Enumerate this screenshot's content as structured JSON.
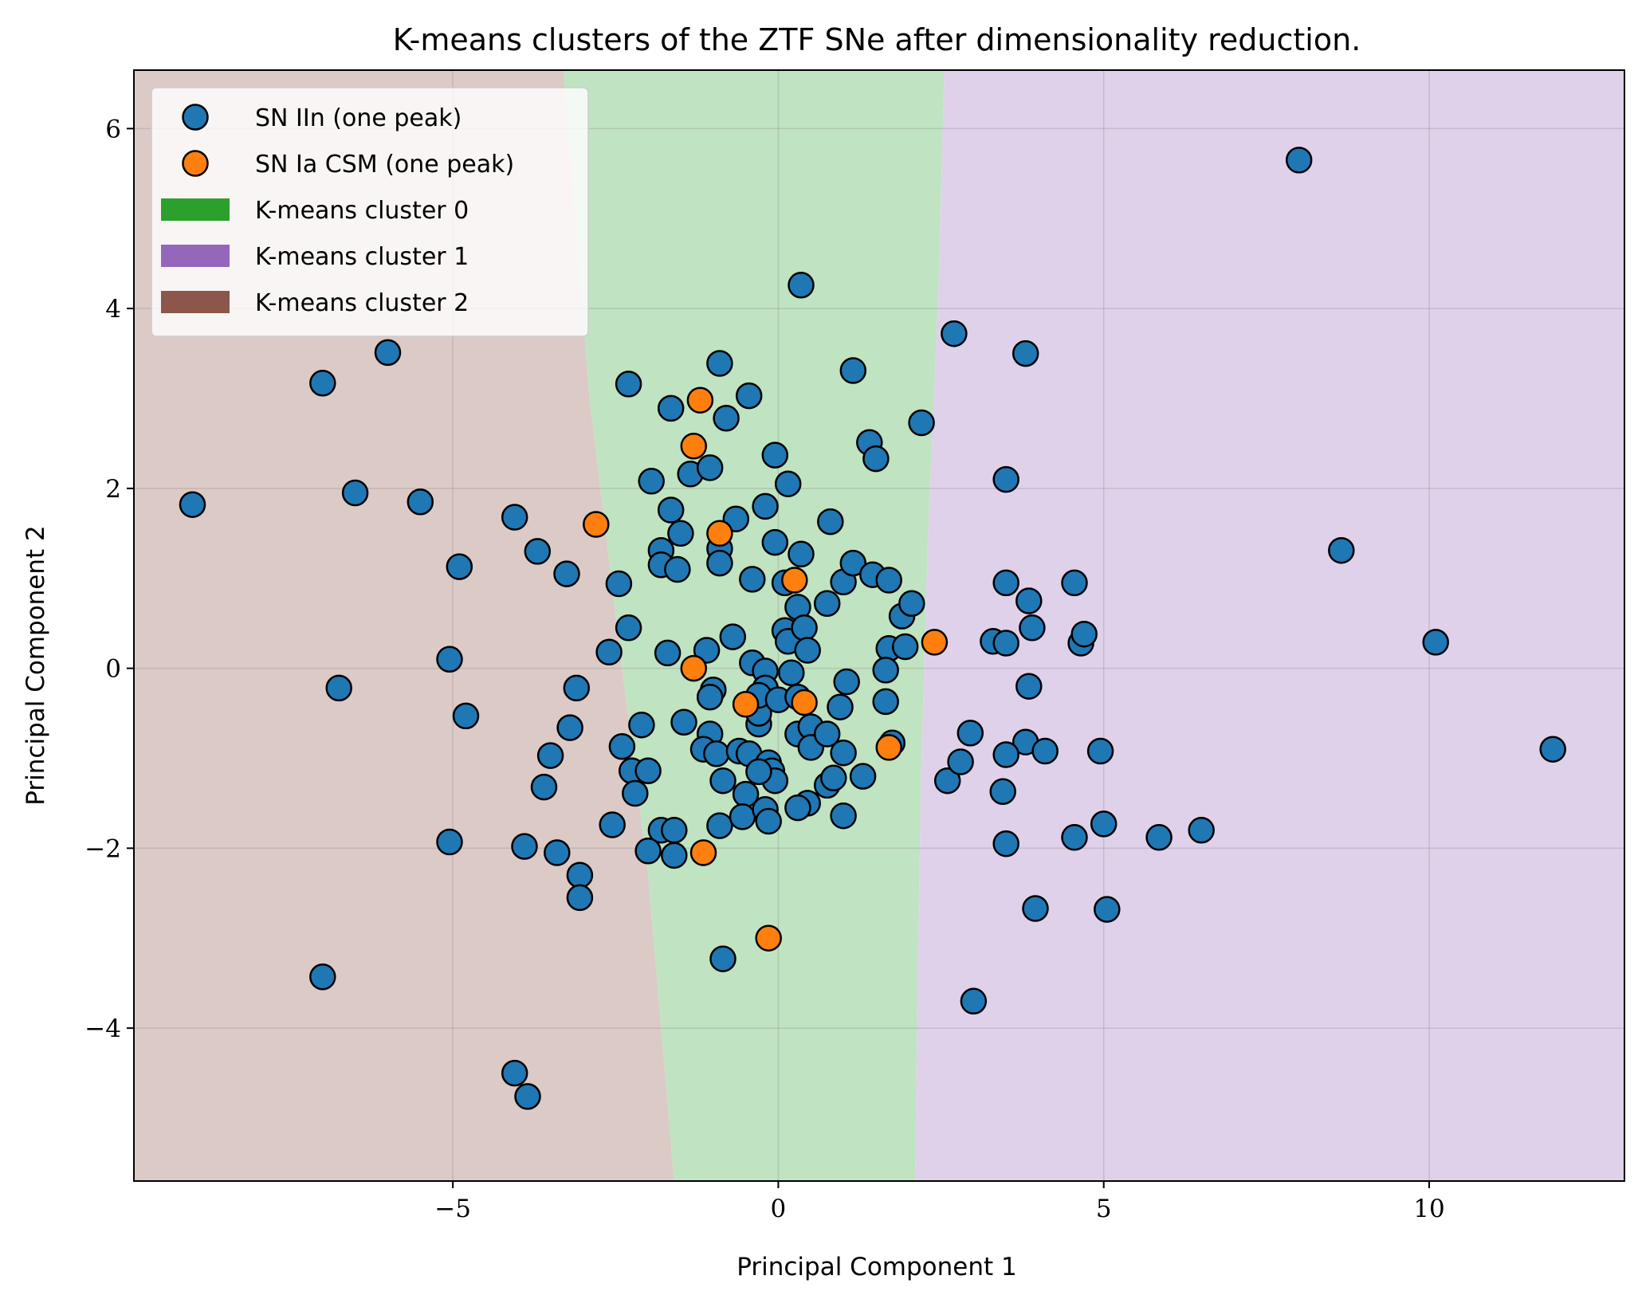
{
  "chart_data": {
    "type": "scatter",
    "title": "K-means clusters of the ZTF SNe after dimensionality reduction.",
    "xlabel": "Principal Component 1",
    "ylabel": "Principal Component 2",
    "xlim": [
      -9.9,
      13.0
    ],
    "ylim": [
      -5.7,
      6.65
    ],
    "xticks": [
      -5,
      0,
      5,
      10
    ],
    "xtick_labels": [
      "−5",
      "0",
      "5",
      "10"
    ],
    "yticks": [
      -4,
      -2,
      0,
      2,
      4,
      6
    ],
    "ytick_labels": [
      "−4",
      "−2",
      "0",
      "2",
      "4",
      "6"
    ],
    "grid": true,
    "legend_position": "top-left",
    "colors": {
      "sn_iin": "#1f77b4",
      "sn_ia_csm": "#ff7f0e",
      "cluster_0": "#2ca02c",
      "cluster_1": "#9467bd",
      "cluster_2": "#8c564b",
      "region_0": "#c0e3c2",
      "region_1": "#dfd1ea",
      "region_2": "#dccac7"
    },
    "regions": [
      {
        "name": "K-means cluster 2",
        "color_key": "cluster_2"
      },
      {
        "name": "K-means cluster 0",
        "color_key": "cluster_0"
      },
      {
        "name": "K-means cluster 1",
        "color_key": "cluster_1"
      }
    ],
    "boundary_0_2": [
      [
        -3.3,
        6.65
      ],
      [
        -2.9,
        3.0
      ],
      [
        -2.4,
        0.0
      ],
      [
        -2.0,
        -2.3
      ],
      [
        -1.6,
        -5.7
      ]
    ],
    "boundary_0_1": [
      [
        2.55,
        6.65
      ],
      [
        2.45,
        4.0
      ],
      [
        2.3,
        1.5
      ],
      [
        2.2,
        -1.0
      ],
      [
        2.15,
        -3.0
      ],
      [
        2.1,
        -5.7
      ]
    ],
    "series": [
      {
        "name": "SN IIn (one peak)",
        "color_key": "sn_iin",
        "points": [
          [
            -9.0,
            1.82
          ],
          [
            -7.0,
            3.17
          ],
          [
            -6.0,
            3.51
          ],
          [
            -6.5,
            1.95
          ],
          [
            -5.5,
            1.85
          ],
          [
            -4.9,
            1.13
          ],
          [
            -5.05,
            0.1
          ],
          [
            -6.75,
            -0.22
          ],
          [
            -4.8,
            -0.53
          ],
          [
            -5.05,
            -1.93
          ],
          [
            -7.0,
            -3.43
          ],
          [
            -4.05,
            -4.5
          ],
          [
            -3.85,
            -4.76
          ],
          [
            -4.05,
            1.68
          ],
          [
            -3.7,
            1.3
          ],
          [
            -3.25,
            1.05
          ],
          [
            -3.1,
            -0.22
          ],
          [
            -3.2,
            -0.66
          ],
          [
            -3.5,
            -0.97
          ],
          [
            -3.6,
            -1.32
          ],
          [
            -3.9,
            -1.98
          ],
          [
            -3.4,
            -2.05
          ],
          [
            -3.05,
            -2.3
          ],
          [
            -3.05,
            -2.55
          ],
          [
            -2.3,
            3.16
          ],
          [
            -2.45,
            0.94
          ],
          [
            -2.3,
            0.45
          ],
          [
            -2.6,
            0.18
          ],
          [
            -2.1,
            -0.63
          ],
          [
            -2.4,
            -0.87
          ],
          [
            -2.25,
            -1.14
          ],
          [
            -2.2,
            -1.39
          ],
          [
            -2.55,
            -1.74
          ],
          [
            -1.95,
            2.08
          ],
          [
            -1.65,
            2.89
          ],
          [
            -1.35,
            2.16
          ],
          [
            -1.05,
            2.23
          ],
          [
            -0.9,
            3.39
          ],
          [
            -0.8,
            2.78
          ],
          [
            -0.45,
            3.03
          ],
          [
            -1.65,
            1.76
          ],
          [
            -1.5,
            1.5
          ],
          [
            -1.8,
            1.31
          ],
          [
            -1.8,
            1.15
          ],
          [
            -1.55,
            1.1
          ],
          [
            -0.9,
            1.33
          ],
          [
            -0.9,
            1.17
          ],
          [
            -0.65,
            1.66
          ],
          [
            -0.4,
            0.99
          ],
          [
            -1.7,
            0.17
          ],
          [
            -1.1,
            0.2
          ],
          [
            -0.7,
            0.35
          ],
          [
            -0.4,
            0.06
          ],
          [
            -1.0,
            -0.24
          ],
          [
            -1.05,
            -0.32
          ],
          [
            -1.45,
            -0.6
          ],
          [
            -1.05,
            -0.73
          ],
          [
            -1.15,
            -0.9
          ],
          [
            -0.95,
            -0.95
          ],
          [
            -0.85,
            -1.25
          ],
          [
            -0.9,
            -1.75
          ],
          [
            -0.6,
            -0.92
          ],
          [
            -0.45,
            -0.95
          ],
          [
            -0.3,
            -0.62
          ],
          [
            -0.3,
            -0.5
          ],
          [
            -0.5,
            -1.4
          ],
          [
            -0.55,
            -1.65
          ],
          [
            -2.0,
            -1.14
          ],
          [
            -1.8,
            -1.8
          ],
          [
            -1.6,
            -1.8
          ],
          [
            -2.0,
            -2.03
          ],
          [
            -1.6,
            -2.08
          ],
          [
            -0.85,
            -3.23
          ],
          [
            -0.2,
            -0.03
          ],
          [
            -0.2,
            -0.22
          ],
          [
            -0.3,
            -0.3
          ],
          [
            0.0,
            -0.35
          ],
          [
            -0.15,
            -1.05
          ],
          [
            -0.1,
            -1.14
          ],
          [
            -0.05,
            -1.25
          ],
          [
            -0.3,
            -1.15
          ],
          [
            -0.2,
            -1.57
          ],
          [
            -0.15,
            -1.7
          ],
          [
            -0.05,
            2.37
          ],
          [
            0.15,
            2.05
          ],
          [
            -0.2,
            1.8
          ],
          [
            -0.05,
            1.4
          ],
          [
            0.35,
            1.27
          ],
          [
            0.1,
            0.95
          ],
          [
            0.1,
            0.42
          ],
          [
            0.15,
            0.3
          ],
          [
            0.3,
            0.68
          ],
          [
            0.4,
            0.45
          ],
          [
            0.45,
            0.2
          ],
          [
            0.2,
            -0.05
          ],
          [
            0.3,
            -0.32
          ],
          [
            0.3,
            -0.73
          ],
          [
            0.5,
            -0.65
          ],
          [
            0.5,
            -0.88
          ],
          [
            0.45,
            -1.5
          ],
          [
            0.3,
            -1.55
          ],
          [
            0.75,
            -0.73
          ],
          [
            0.75,
            -1.3
          ],
          [
            0.85,
            -1.22
          ],
          [
            0.95,
            -0.43
          ],
          [
            1.0,
            -0.94
          ],
          [
            1.0,
            -1.64
          ],
          [
            1.05,
            -0.15
          ],
          [
            0.75,
            0.72
          ],
          [
            0.8,
            1.63
          ],
          [
            1.0,
            0.96
          ],
          [
            1.15,
            1.17
          ],
          [
            1.15,
            3.31
          ],
          [
            1.3,
            -1.2
          ],
          [
            1.4,
            2.51
          ],
          [
            1.5,
            2.33
          ],
          [
            1.45,
            1.04
          ],
          [
            1.7,
            0.98
          ],
          [
            1.7,
            0.22
          ],
          [
            1.65,
            -0.02
          ],
          [
            1.65,
            -0.37
          ],
          [
            1.75,
            -0.83
          ],
          [
            1.9,
            0.58
          ],
          [
            1.95,
            0.24
          ],
          [
            2.05,
            0.72
          ],
          [
            2.2,
            2.73
          ],
          [
            0.35,
            4.26
          ],
          [
            2.7,
            3.72
          ],
          [
            3.8,
            3.5
          ],
          [
            3.5,
            2.1
          ],
          [
            3.5,
            0.95
          ],
          [
            3.85,
            0.75
          ],
          [
            3.9,
            0.45
          ],
          [
            3.3,
            0.3
          ],
          [
            3.5,
            0.28
          ],
          [
            3.85,
            -0.2
          ],
          [
            2.6,
            -1.25
          ],
          [
            2.8,
            -1.04
          ],
          [
            2.95,
            -0.72
          ],
          [
            3.8,
            -0.82
          ],
          [
            3.5,
            -0.96
          ],
          [
            4.1,
            -0.92
          ],
          [
            3.45,
            -1.37
          ],
          [
            3.5,
            -1.95
          ],
          [
            3.95,
            -2.67
          ],
          [
            3.0,
            -3.7
          ],
          [
            4.55,
            0.95
          ],
          [
            4.65,
            0.28
          ],
          [
            4.7,
            0.38
          ],
          [
            4.95,
            -0.92
          ],
          [
            4.55,
            -1.88
          ],
          [
            5.0,
            -1.73
          ],
          [
            5.05,
            -2.68
          ],
          [
            5.85,
            -1.88
          ],
          [
            6.5,
            -1.8
          ],
          [
            8.0,
            5.65
          ],
          [
            8.65,
            1.31
          ],
          [
            10.1,
            0.29
          ],
          [
            11.9,
            -0.9
          ]
        ]
      },
      {
        "name": "SN Ia CSM (one peak)",
        "color_key": "sn_ia_csm",
        "points": [
          [
            -1.2,
            2.98
          ],
          [
            -1.3,
            2.47
          ],
          [
            -2.8,
            1.6
          ],
          [
            -0.9,
            1.5
          ],
          [
            0.25,
            0.98
          ],
          [
            -1.3,
            0.0
          ],
          [
            -0.5,
            -0.4
          ],
          [
            0.4,
            -0.38
          ],
          [
            1.7,
            -0.88
          ],
          [
            2.4,
            0.29
          ],
          [
            -1.15,
            -2.05
          ],
          [
            -0.15,
            -3.0
          ]
        ]
      }
    ]
  },
  "legend": {
    "items": [
      {
        "label": "SN IIn (one peak)",
        "kind": "marker",
        "color_key": "sn_iin"
      },
      {
        "label": "SN Ia CSM (one peak)",
        "kind": "marker",
        "color_key": "sn_ia_csm"
      },
      {
        "label": "K-means cluster 0",
        "kind": "patch",
        "color_key": "cluster_0"
      },
      {
        "label": "K-means cluster 1",
        "kind": "patch",
        "color_key": "cluster_1"
      },
      {
        "label": "K-means cluster 2",
        "kind": "patch",
        "color_key": "cluster_2"
      }
    ]
  }
}
